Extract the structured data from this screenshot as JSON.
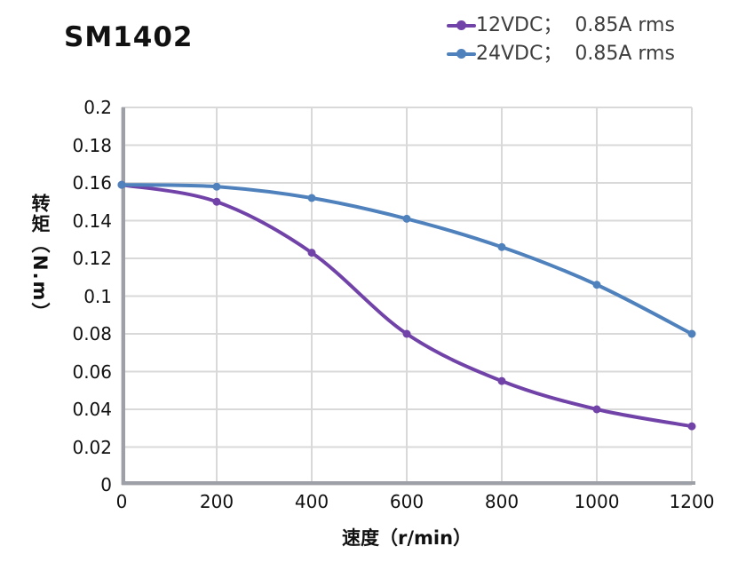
{
  "page": {
    "title": "SM1402"
  },
  "legend": {
    "position": "top-right",
    "items": [
      {
        "label": "12VDC；  0.85A rms",
        "color": "#7143A8",
        "marker": "circle-line-icon"
      },
      {
        "label": "24VDC；  0.85A rms",
        "color": "#4F81BD",
        "marker": "circle-line-icon"
      }
    ]
  },
  "chart_data": {
    "type": "line",
    "title": "SM1402",
    "xlabel": "速度（r/min）",
    "ylabel": "转矩（N.m）",
    "x": [
      0,
      200,
      400,
      600,
      800,
      1000,
      1200
    ],
    "series": [
      {
        "name": "12VDC；  0.85A rms",
        "color": "#7143A8",
        "values": [
          0.159,
          0.15,
          0.123,
          0.08,
          0.055,
          0.04,
          0.031
        ]
      },
      {
        "name": "24VDC；  0.85A rms",
        "color": "#4F81BD",
        "values": [
          0.159,
          0.158,
          0.152,
          0.141,
          0.126,
          0.106,
          0.08
        ]
      }
    ],
    "xlim": [
      0,
      1200
    ],
    "ylim": [
      0,
      0.2
    ],
    "xticks": [
      0,
      200,
      400,
      600,
      800,
      1000,
      1200
    ],
    "xtick_labels": [
      "0",
      "200",
      "400",
      "600",
      "800",
      "1000",
      "1200"
    ],
    "yticks": [
      0,
      0.02,
      0.04,
      0.06,
      0.08,
      0.1,
      0.12,
      0.14,
      0.16,
      0.18,
      0.2
    ],
    "ytick_labels": [
      "0",
      "0.02",
      "0.04",
      "0.06",
      "0.08",
      "0.1",
      "0.12",
      "0.14",
      "0.16",
      "0.18",
      "0.2"
    ],
    "grid": true,
    "legend_position": "top-right"
  },
  "colors": {
    "background": "#ffffff",
    "grid": "#D9D9D9",
    "axis": "#9DA0A6",
    "text": "#111111",
    "legend_text": "#3d3d3d"
  }
}
